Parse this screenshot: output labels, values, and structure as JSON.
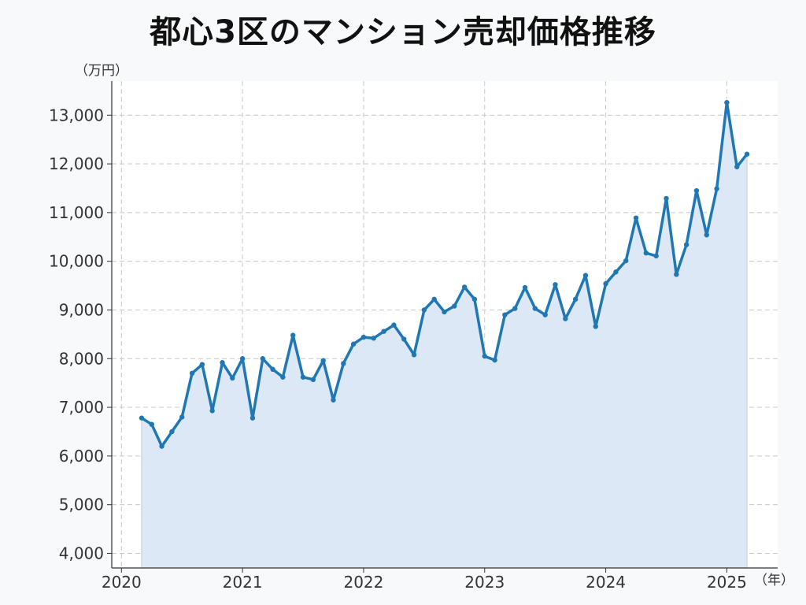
{
  "chart_data": {
    "type": "area",
    "title": "都心3区のマンション売却価格推移",
    "ylabel": "（万円）",
    "xlabel": "（年）",
    "ylim": [
      3700,
      13700
    ],
    "xlim": [
      2019.92,
      2025.42
    ],
    "yticks": [
      4000,
      5000,
      6000,
      7000,
      8000,
      9000,
      10000,
      11000,
      12000,
      13000
    ],
    "ytick_labels": [
      "4,000",
      "5,000",
      "6,000",
      "7,000",
      "8,000",
      "9,000",
      "10,000",
      "11,000",
      "12,000",
      "13,000"
    ],
    "xticks": [
      2020,
      2021,
      2022,
      2023,
      2024,
      2025
    ],
    "xtick_labels": [
      "2020",
      "2021",
      "2022",
      "2023",
      "2024",
      "2025"
    ],
    "grid": true,
    "colors": {
      "line": "#1f77b4",
      "fill": "#dce8f5",
      "grid": "#c8c8c8",
      "axis": "#333333"
    },
    "series": [
      {
        "x_start": "2020-03",
        "x_step": "month",
        "values": [
          6780,
          6650,
          6200,
          6500,
          6800,
          7700,
          7880,
          6930,
          7920,
          7600,
          8000,
          6780,
          8000,
          7780,
          7620,
          8480,
          7620,
          7570,
          7960,
          7150,
          7900,
          8300,
          8440,
          8420,
          8560,
          8690,
          8400,
          8080,
          9000,
          9220,
          8960,
          9080,
          9470,
          9220,
          8050,
          7970,
          8900,
          9030,
          9460,
          9030,
          8900,
          9520,
          8820,
          9220,
          9710,
          8660,
          9540,
          9780,
          10010,
          10890,
          10170,
          10110,
          11290,
          9730,
          10340,
          11450,
          10540,
          11490,
          13260,
          11940,
          12200
        ]
      }
    ]
  }
}
